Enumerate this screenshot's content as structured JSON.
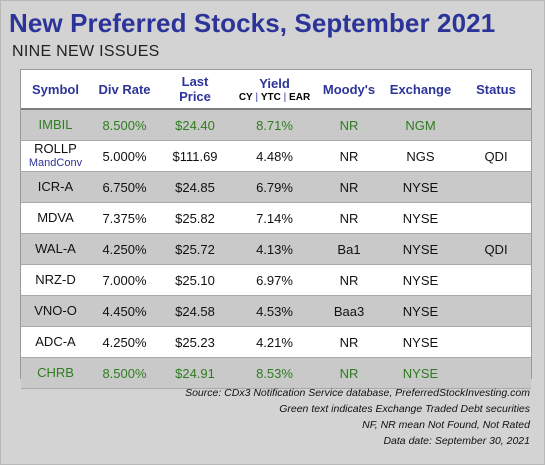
{
  "title": "New Preferred Stocks, September 2021",
  "subtitle": "NINE NEW ISSUES",
  "table": {
    "headers": {
      "symbol": "Symbol",
      "div_rate": "Div Rate",
      "last_price_1": "Last",
      "last_price_2": "Price",
      "yield": "Yield",
      "yield_sub": {
        "cy": "CY",
        "sep1": " | ",
        "ytc": "YTC",
        "sep2": " | ",
        "ear": "EAR"
      },
      "moodys": "Moody's",
      "exchange": "Exchange",
      "status": "Status"
    },
    "rows": [
      {
        "symbol": "IMBIL",
        "sub": "",
        "div_rate": "8.500%",
        "last_price": "$24.40",
        "yield": "8.71%",
        "moodys": "NR",
        "exchange": "NGM",
        "status": ""
      },
      {
        "symbol": "ROLLP",
        "sub": "MandConv",
        "div_rate": "5.000%",
        "last_price": "$111.69",
        "yield": "4.48%",
        "moodys": "NR",
        "exchange": "NGS",
        "status": "QDI"
      },
      {
        "symbol": "ICR-A",
        "sub": "",
        "div_rate": "6.750%",
        "last_price": "$24.85",
        "yield": "6.79%",
        "moodys": "NR",
        "exchange": "NYSE",
        "status": ""
      },
      {
        "symbol": "MDVA",
        "sub": "",
        "div_rate": "7.375%",
        "last_price": "$25.82",
        "yield": "7.14%",
        "moodys": "NR",
        "exchange": "NYSE",
        "status": ""
      },
      {
        "symbol": "WAL-A",
        "sub": "",
        "div_rate": "4.250%",
        "last_price": "$25.72",
        "yield": "4.13%",
        "moodys": "Ba1",
        "exchange": "NYSE",
        "status": "QDI"
      },
      {
        "symbol": "NRZ-D",
        "sub": "",
        "div_rate": "7.000%",
        "last_price": "$25.10",
        "yield": "6.97%",
        "moodys": "NR",
        "exchange": "NYSE",
        "status": ""
      },
      {
        "symbol": "VNO-O",
        "sub": "",
        "div_rate": "4.450%",
        "last_price": "$24.58",
        "yield": "4.53%",
        "moodys": "Baa3",
        "exchange": "NYSE",
        "status": ""
      },
      {
        "symbol": "ADC-A",
        "sub": "",
        "div_rate": "4.250%",
        "last_price": "$25.23",
        "yield": "4.21%",
        "moodys": "NR",
        "exchange": "NYSE",
        "status": ""
      },
      {
        "symbol": "CHRB",
        "sub": "",
        "div_rate": "8.500%",
        "last_price": "$24.91",
        "yield": "8.53%",
        "moodys": "NR",
        "exchange": "NYSE",
        "status": ""
      }
    ]
  },
  "footer": {
    "line1": "Source: CDx3 Notification Service database, PreferredStockInvesting.com",
    "line2": "Green text indicates Exchange Traded Debt securities",
    "line3": "NF, NR mean Not Found, Not Rated",
    "line4": "Data date: September 30, 2021"
  },
  "colors": {
    "title": "#2c3499",
    "header": "#2c3499",
    "green_text": "#2e7d1e",
    "shaded_row": "#c9c9c9",
    "panel": "#d3d3d3"
  }
}
